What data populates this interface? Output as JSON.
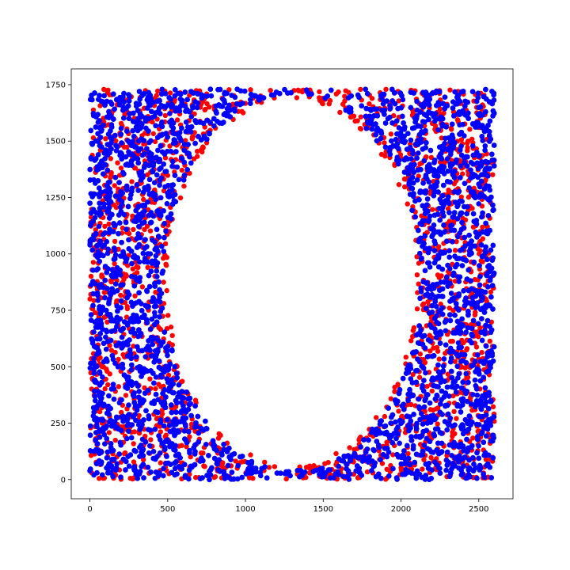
{
  "chart_data": {
    "type": "scatter",
    "title": "",
    "xlabel": "",
    "ylabel": "",
    "xlim": [
      -120,
      2720
    ],
    "ylim": [
      -85,
      1820
    ],
    "x_ticks": [
      0,
      500,
      1000,
      1500,
      2000,
      2500
    ],
    "y_ticks": [
      0,
      250,
      500,
      750,
      1000,
      1250,
      1500,
      1750
    ],
    "x_tick_labels": [
      "0",
      "500",
      "1000",
      "1500",
      "2000",
      "2500"
    ],
    "y_tick_labels": [
      "0",
      "250",
      "500",
      "750",
      "1000",
      "1250",
      "1500",
      "1750"
    ],
    "grid": false,
    "legend": "none",
    "points_region": {
      "x_range": [
        0,
        2600
      ],
      "y_range": [
        0,
        1730
      ]
    },
    "excluded_ellipse": {
      "center_x": 1300,
      "center_y": 875,
      "radius_x": 810,
      "radius_y": 820
    },
    "series": [
      {
        "color": "#ff0000",
        "marker": "circle"
      },
      {
        "color": "#0000ff",
        "marker": "circle"
      }
    ]
  }
}
